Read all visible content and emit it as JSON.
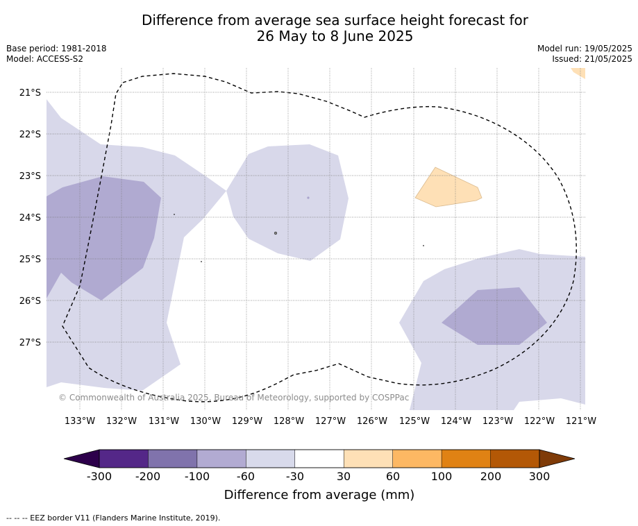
{
  "header": {
    "title_line1": "Difference from average sea surface height forecast for",
    "title_line2": "26 May to 8 June 2025",
    "base_period": "Base period: 1981-2018",
    "model": "Model: ACCESS-S2",
    "model_run": "Model run: 19/05/2025",
    "issued": "Issued: 21/05/2025"
  },
  "map": {
    "latitude_labels": [
      "21°S",
      "22°S",
      "23°S",
      "24°S",
      "25°S",
      "26°S",
      "27°S"
    ],
    "longitude_labels": [
      "133°W",
      "132°W",
      "131°W",
      "130°W",
      "129°W",
      "128°W",
      "127°W",
      "126°W",
      "125°W",
      "124°W",
      "123°W",
      "122°W",
      "121°W"
    ],
    "copyright": "© Commonwealth of Australia 2025, Bureau of Meteorology, supported by COSPPac",
    "gridlines": true,
    "eez_border_style": "dashed",
    "colors": {
      "light_lavender": "#d8d8ea",
      "medium_lavender": "#b0aad1",
      "light_peach": "#fee0b6"
    }
  },
  "colorbar": {
    "title": "Difference from average (mm)",
    "tick_labels": [
      "-300",
      "-200",
      "-100",
      "-60",
      "-30",
      "30",
      "60",
      "100",
      "200",
      "300"
    ],
    "colors": [
      "#2d004b",
      "#542788",
      "#8073ac",
      "#b2abd2",
      "#d8daeb",
      "#ffffff",
      "#fee0b6",
      "#fdb863",
      "#e08214",
      "#b35806",
      "#7f3b08"
    ]
  },
  "footnote": "-- -- -- EEZ border V11 (Flanders Marine Institute, 2019)."
}
